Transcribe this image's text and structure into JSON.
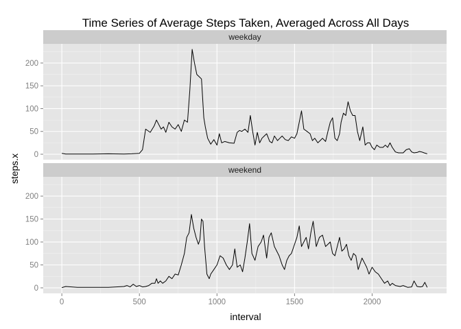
{
  "chart_data": {
    "type": "line",
    "title": "Time Series of Average Steps Taken, Averaged Across All Days",
    "xlabel": "interval",
    "ylabel": "steps.x",
    "xlim": [
      -120,
      2480
    ],
    "ylim": [
      -12,
      242
    ],
    "x_ticks": [
      0,
      500,
      1000,
      1500,
      2000
    ],
    "x_tick_labels": [
      "0",
      "500",
      "1000",
      "1500",
      "2000"
    ],
    "y_ticks": [
      0,
      50,
      100,
      150,
      200
    ],
    "y_tick_labels": [
      "0",
      "50",
      "100",
      "150",
      "200"
    ],
    "grid": true,
    "facets": [
      {
        "name": "weekday",
        "points": [
          [
            0,
            2
          ],
          [
            25,
            0.5
          ],
          [
            100,
            0.5
          ],
          [
            200,
            0.5
          ],
          [
            300,
            1
          ],
          [
            400,
            0.5
          ],
          [
            450,
            1
          ],
          [
            500,
            2
          ],
          [
            520,
            10
          ],
          [
            540,
            55
          ],
          [
            570,
            48
          ],
          [
            595,
            62
          ],
          [
            610,
            75
          ],
          [
            625,
            65
          ],
          [
            640,
            55
          ],
          [
            655,
            60
          ],
          [
            670,
            48
          ],
          [
            690,
            70
          ],
          [
            710,
            60
          ],
          [
            730,
            55
          ],
          [
            750,
            65
          ],
          [
            770,
            50
          ],
          [
            790,
            75
          ],
          [
            810,
            70
          ],
          [
            825,
            140
          ],
          [
            840,
            230
          ],
          [
            855,
            200
          ],
          [
            870,
            175
          ],
          [
            885,
            170
          ],
          [
            900,
            165
          ],
          [
            915,
            80
          ],
          [
            925,
            60
          ],
          [
            940,
            35
          ],
          [
            960,
            22
          ],
          [
            980,
            32
          ],
          [
            1000,
            20
          ],
          [
            1015,
            45
          ],
          [
            1030,
            25
          ],
          [
            1050,
            28
          ],
          [
            1080,
            25
          ],
          [
            1110,
            24
          ],
          [
            1130,
            48
          ],
          [
            1145,
            52
          ],
          [
            1160,
            50
          ],
          [
            1180,
            55
          ],
          [
            1200,
            48
          ],
          [
            1215,
            85
          ],
          [
            1230,
            50
          ],
          [
            1245,
            20
          ],
          [
            1260,
            48
          ],
          [
            1275,
            25
          ],
          [
            1290,
            35
          ],
          [
            1305,
            40
          ],
          [
            1320,
            45
          ],
          [
            1340,
            28
          ],
          [
            1355,
            25
          ],
          [
            1370,
            40
          ],
          [
            1390,
            30
          ],
          [
            1405,
            35
          ],
          [
            1420,
            40
          ],
          [
            1440,
            32
          ],
          [
            1460,
            30
          ],
          [
            1480,
            38
          ],
          [
            1500,
            35
          ],
          [
            1515,
            45
          ],
          [
            1530,
            70
          ],
          [
            1545,
            95
          ],
          [
            1560,
            55
          ],
          [
            1580,
            50
          ],
          [
            1600,
            45
          ],
          [
            1615,
            30
          ],
          [
            1630,
            35
          ],
          [
            1650,
            25
          ],
          [
            1665,
            30
          ],
          [
            1680,
            35
          ],
          [
            1700,
            28
          ],
          [
            1715,
            50
          ],
          [
            1730,
            70
          ],
          [
            1745,
            80
          ],
          [
            1760,
            35
          ],
          [
            1775,
            30
          ],
          [
            1790,
            45
          ],
          [
            1800,
            70
          ],
          [
            1815,
            90
          ],
          [
            1830,
            85
          ],
          [
            1845,
            115
          ],
          [
            1860,
            95
          ],
          [
            1875,
            85
          ],
          [
            1890,
            85
          ],
          [
            1905,
            50
          ],
          [
            1920,
            30
          ],
          [
            1940,
            60
          ],
          [
            1955,
            20
          ],
          [
            1970,
            25
          ],
          [
            1985,
            25
          ],
          [
            2000,
            15
          ],
          [
            2015,
            10
          ],
          [
            2030,
            20
          ],
          [
            2050,
            15
          ],
          [
            2070,
            15
          ],
          [
            2085,
            20
          ],
          [
            2100,
            15
          ],
          [
            2115,
            25
          ],
          [
            2130,
            15
          ],
          [
            2150,
            5
          ],
          [
            2170,
            3
          ],
          [
            2200,
            3
          ],
          [
            2220,
            10
          ],
          [
            2240,
            12
          ],
          [
            2255,
            5
          ],
          [
            2270,
            3
          ],
          [
            2290,
            4
          ],
          [
            2305,
            6
          ],
          [
            2320,
            5
          ],
          [
            2335,
            3
          ],
          [
            2355,
            1
          ]
        ]
      },
      {
        "name": "weekend",
        "points": [
          [
            0,
            0.5
          ],
          [
            25,
            3
          ],
          [
            100,
            1
          ],
          [
            200,
            1
          ],
          [
            300,
            1
          ],
          [
            400,
            3
          ],
          [
            420,
            5
          ],
          [
            440,
            2
          ],
          [
            460,
            8
          ],
          [
            480,
            3
          ],
          [
            500,
            5
          ],
          [
            520,
            2
          ],
          [
            540,
            3
          ],
          [
            560,
            5
          ],
          [
            580,
            10
          ],
          [
            600,
            10
          ],
          [
            610,
            20
          ],
          [
            620,
            10
          ],
          [
            635,
            15
          ],
          [
            650,
            10
          ],
          [
            670,
            15
          ],
          [
            690,
            25
          ],
          [
            710,
            20
          ],
          [
            730,
            30
          ],
          [
            750,
            28
          ],
          [
            770,
            50
          ],
          [
            790,
            75
          ],
          [
            805,
            110
          ],
          [
            820,
            120
          ],
          [
            835,
            160
          ],
          [
            850,
            130
          ],
          [
            865,
            110
          ],
          [
            880,
            95
          ],
          [
            890,
            105
          ],
          [
            900,
            150
          ],
          [
            910,
            145
          ],
          [
            920,
            90
          ],
          [
            935,
            30
          ],
          [
            950,
            20
          ],
          [
            960,
            30
          ],
          [
            980,
            40
          ],
          [
            1000,
            50
          ],
          [
            1020,
            70
          ],
          [
            1040,
            65
          ],
          [
            1060,
            50
          ],
          [
            1080,
            40
          ],
          [
            1100,
            50
          ],
          [
            1115,
            85
          ],
          [
            1130,
            45
          ],
          [
            1150,
            50
          ],
          [
            1165,
            35
          ],
          [
            1180,
            65
          ],
          [
            1195,
            100
          ],
          [
            1210,
            140
          ],
          [
            1225,
            75
          ],
          [
            1245,
            60
          ],
          [
            1265,
            90
          ],
          [
            1285,
            100
          ],
          [
            1300,
            115
          ],
          [
            1320,
            65
          ],
          [
            1335,
            110
          ],
          [
            1350,
            120
          ],
          [
            1370,
            90
          ],
          [
            1385,
            80
          ],
          [
            1400,
            70
          ],
          [
            1420,
            50
          ],
          [
            1435,
            40
          ],
          [
            1450,
            60
          ],
          [
            1465,
            70
          ],
          [
            1480,
            75
          ],
          [
            1500,
            95
          ],
          [
            1515,
            110
          ],
          [
            1530,
            135
          ],
          [
            1545,
            90
          ],
          [
            1560,
            100
          ],
          [
            1575,
            110
          ],
          [
            1590,
            85
          ],
          [
            1605,
            120
          ],
          [
            1620,
            145
          ],
          [
            1640,
            90
          ],
          [
            1660,
            110
          ],
          [
            1680,
            115
          ],
          [
            1700,
            90
          ],
          [
            1715,
            95
          ],
          [
            1730,
            100
          ],
          [
            1745,
            75
          ],
          [
            1760,
            70
          ],
          [
            1775,
            90
          ],
          [
            1790,
            110
          ],
          [
            1805,
            80
          ],
          [
            1820,
            85
          ],
          [
            1835,
            95
          ],
          [
            1850,
            70
          ],
          [
            1865,
            60
          ],
          [
            1880,
            75
          ],
          [
            1895,
            70
          ],
          [
            1910,
            40
          ],
          [
            1920,
            50
          ],
          [
            1935,
            65
          ],
          [
            1950,
            55
          ],
          [
            1965,
            45
          ],
          [
            1980,
            30
          ],
          [
            2000,
            45
          ],
          [
            2020,
            35
          ],
          [
            2040,
            30
          ],
          [
            2060,
            20
          ],
          [
            2080,
            10
          ],
          [
            2100,
            15
          ],
          [
            2115,
            5
          ],
          [
            2130,
            10
          ],
          [
            2150,
            5
          ],
          [
            2180,
            3
          ],
          [
            2200,
            5
          ],
          [
            2230,
            1
          ],
          [
            2255,
            2
          ],
          [
            2270,
            15
          ],
          [
            2290,
            3
          ],
          [
            2310,
            2
          ],
          [
            2325,
            3
          ],
          [
            2340,
            12
          ],
          [
            2355,
            1
          ]
        ]
      }
    ]
  }
}
